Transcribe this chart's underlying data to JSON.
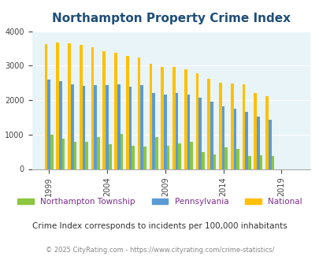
{
  "title": "Northampton Property Crime Index",
  "subtitle": "Crime Index corresponds to incidents per 100,000 inhabitants",
  "copyright": "© 2025 CityRating.com - https://www.cityrating.com/crime-statistics/",
  "years": [
    1999,
    2000,
    2001,
    2002,
    2003,
    2004,
    2005,
    2006,
    2007,
    2008,
    2009,
    2010,
    2011,
    2012,
    2013,
    2014,
    2015,
    2016,
    2017,
    2018,
    2019,
    2020
  ],
  "northampton": [
    1000,
    880,
    800,
    780,
    930,
    730,
    1010,
    680,
    650,
    920,
    680,
    740,
    800,
    500,
    430,
    640,
    590,
    380,
    390,
    370,
    0,
    0
  ],
  "pennsylvania": [
    2600,
    2560,
    2460,
    2420,
    2430,
    2430,
    2450,
    2380,
    2440,
    2210,
    2160,
    2200,
    2160,
    2070,
    1960,
    1810,
    1760,
    1660,
    1510,
    1420,
    0,
    0
  ],
  "national": [
    3620,
    3680,
    3640,
    3610,
    3540,
    3420,
    3370,
    3290,
    3240,
    3060,
    2970,
    2960,
    2900,
    2770,
    2620,
    2510,
    2490,
    2450,
    2200,
    2110,
    0,
    0
  ],
  "bar_width": 0.25,
  "color_northampton": "#8dc63f",
  "color_pennsylvania": "#5b9bd5",
  "color_national": "#ffc000",
  "bg_color": "#e8f4f8",
  "ylim": [
    0,
    4000
  ],
  "yticks": [
    0,
    1000,
    2000,
    3000,
    4000
  ],
  "xtick_years": [
    1999,
    2004,
    2009,
    2014,
    2019
  ],
  "title_color": "#1f4e79",
  "subtitle_color": "#333333",
  "copyright_color": "#888888",
  "legend_label_color": "#7b2d8b"
}
